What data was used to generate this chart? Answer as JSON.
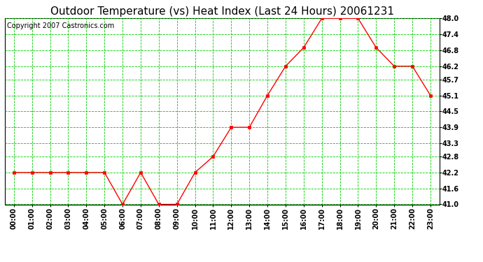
{
  "title": "Outdoor Temperature (vs) Heat Index (Last 24 Hours) 20061231",
  "copyright": "Copyright 2007 Castronics.com",
  "x_labels": [
    "00:00",
    "01:00",
    "02:00",
    "03:00",
    "04:00",
    "05:00",
    "06:00",
    "07:00",
    "08:00",
    "09:00",
    "10:00",
    "11:00",
    "12:00",
    "13:00",
    "14:00",
    "15:00",
    "16:00",
    "17:00",
    "18:00",
    "19:00",
    "20:00",
    "21:00",
    "22:00",
    "23:00"
  ],
  "y_values": [
    42.2,
    42.2,
    42.2,
    42.2,
    42.2,
    42.2,
    41.0,
    42.2,
    41.0,
    41.0,
    42.2,
    42.8,
    43.9,
    43.9,
    45.1,
    46.2,
    46.9,
    48.0,
    48.0,
    48.0,
    46.9,
    46.2,
    46.2,
    45.1
  ],
  "ylim": [
    41.0,
    48.0
  ],
  "yticks": [
    41.0,
    41.6,
    42.2,
    42.8,
    43.3,
    43.9,
    44.5,
    45.1,
    45.7,
    46.2,
    46.8,
    47.4,
    48.0
  ],
  "line_color": "red",
  "marker_color": "red",
  "bg_color": "white",
  "grid_color": "#00cc00",
  "title_fontsize": 11,
  "copyright_fontsize": 7,
  "tick_fontsize": 7
}
